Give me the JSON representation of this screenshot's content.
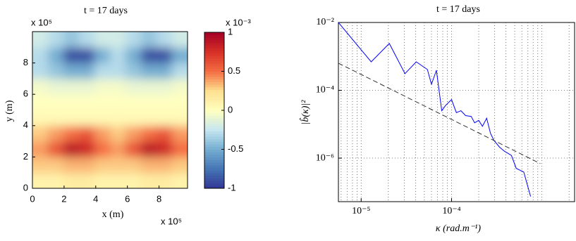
{
  "chart_data": [
    {
      "type": "heatmap",
      "title": "t = 17 days",
      "xlabel": "x (m)",
      "ylabel": "y (m)",
      "x_multiplier": "x 10⁵",
      "colorbar_label": "x 10⁻³",
      "xlim": [
        0,
        9.8
      ],
      "ylim": [
        0,
        10
      ],
      "xticks": [
        0,
        2,
        4,
        6,
        8
      ],
      "yticks": [
        0,
        2,
        4,
        6,
        8
      ],
      "clim": [
        -1,
        1
      ],
      "cticks": [
        -1,
        -0.5,
        0,
        0.5,
        1
      ],
      "colorscale": [
        "#313695",
        "#4575b4",
        "#74add1",
        "#c6e6f0",
        "#ffffbf",
        "#fee090",
        "#f46d43",
        "#d73027",
        "#a50026"
      ],
      "z": [
        [
          0.1,
          0.1,
          0.15,
          0.15,
          0.1,
          0.1,
          0.1,
          0.15,
          0.15,
          0.1
        ],
        [
          0.3,
          0.3,
          0.35,
          0.35,
          0.3,
          0.3,
          0.3,
          0.35,
          0.35,
          0.3
        ],
        [
          0.4,
          0.6,
          0.9,
          0.8,
          0.5,
          0.4,
          0.6,
          0.9,
          0.8,
          0.5
        ],
        [
          0.3,
          0.4,
          0.5,
          0.6,
          0.4,
          0.3,
          0.4,
          0.5,
          0.6,
          0.4
        ],
        [
          0.05,
          0.05,
          0.05,
          0.05,
          0.05,
          0.05,
          0.05,
          0.05,
          0.05,
          0.05
        ],
        [
          0,
          0,
          0,
          0,
          0,
          0,
          0,
          0,
          0,
          0
        ],
        [
          -0.05,
          -0.1,
          -0.1,
          -0.1,
          -0.05,
          -0.05,
          -0.1,
          -0.1,
          -0.1,
          -0.05
        ],
        [
          -0.3,
          -0.4,
          -0.5,
          -0.5,
          -0.3,
          -0.3,
          -0.4,
          -0.5,
          -0.5,
          -0.3
        ],
        [
          -0.3,
          -0.5,
          -0.9,
          -0.9,
          -0.5,
          -0.3,
          -0.5,
          -0.9,
          -0.9,
          -0.5
        ],
        [
          -0.2,
          -0.3,
          -0.4,
          -0.3,
          -0.2,
          -0.2,
          -0.3,
          -0.4,
          -0.3,
          -0.2
        ]
      ]
    },
    {
      "type": "line",
      "title": "t = 17 days",
      "xlabel": "κ (rad.m⁻¹)",
      "ylabel": "|b̂(κ)|²",
      "xlog": true,
      "ylog": true,
      "grid": true,
      "xlim": [
        5.6e-06,
        0.0023
      ],
      "ylim": [
        5.2e-08,
        0.01
      ],
      "xticks": [
        {
          "value": 1e-05,
          "label": "10⁻⁵"
        },
        {
          "value": 0.0001,
          "label": "10⁻⁴"
        }
      ],
      "yticks": [
        {
          "value": 0.01,
          "label": "10⁻²"
        },
        {
          "value": 0.0001,
          "label": "10⁻⁴"
        },
        {
          "value": 1e-06,
          "label": "10⁻⁶"
        }
      ],
      "series": [
        {
          "color": "#0000ff",
          "style": "solid",
          "x": [
            5.6e-06,
            1.29e-05,
            2.05e-05,
            3.05e-05,
            4.07e-05,
            5.4e-05,
            6e-05,
            6.8e-05,
            7.8e-05,
            8.6e-05,
            0.0001,
            0.000113,
            0.000127,
            0.000143,
            0.000165,
            0.00018,
            0.0002,
            0.00022,
            0.000245,
            0.00027,
            0.000295,
            0.00034,
            0.000385,
            0.00046,
            0.00052,
            0.00063,
            0.00075
          ],
          "values": [
            0.01,
            0.00069,
            0.0024,
            0.00031,
            0.00069,
            0.00041,
            0.00015,
            0.00039,
            2.5e-05,
            3.6e-05,
            5.3e-05,
            2.2e-05,
            2.5e-05,
            1.8e-05,
            1.7e-05,
            1.1e-05,
            1.3e-05,
            8.7e-06,
            1.5e-05,
            5.4e-06,
            3.3e-06,
            2.1e-06,
            1.6e-06,
            1.2e-06,
            5e-07,
            3.9e-07,
            7.4e-08
          ]
        },
        {
          "color": "#333333",
          "style": "dashed",
          "x": [
            5.6e-06,
            0.00096
          ],
          "values": [
            0.00063,
            6.9e-07
          ]
        }
      ]
    }
  ]
}
